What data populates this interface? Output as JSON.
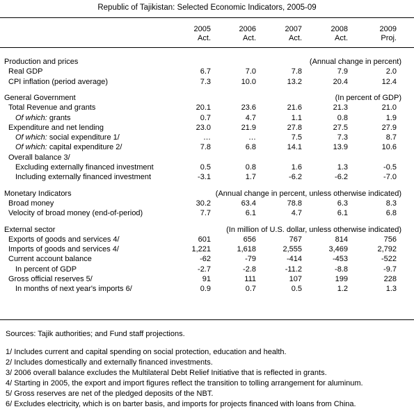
{
  "title": "Republic of Tajikistan: Selected Economic Indicators, 2005-09",
  "columns": [
    {
      "year": "2005",
      "type": "Act."
    },
    {
      "year": "2006",
      "type": "Act."
    },
    {
      "year": "2007",
      "type": "Act."
    },
    {
      "year": "2008",
      "type": "Act."
    },
    {
      "year": "2009",
      "type": "Proj."
    }
  ],
  "rows": [
    {
      "kind": "section",
      "label": "Production and prices",
      "unit": "(Annual change in percent)"
    },
    {
      "kind": "data",
      "indent": 1,
      "label": "Real GDP",
      "values": [
        "6.7",
        "7.0",
        "7.8",
        "7.9",
        "2.0"
      ]
    },
    {
      "kind": "data",
      "indent": 1,
      "label": "CPI inflation (period average)",
      "values": [
        "7.3",
        "10.0",
        "13.2",
        "20.4",
        "12.4"
      ]
    },
    {
      "kind": "section",
      "label": "General Government",
      "unit": "(In percent of GDP)",
      "gap": true
    },
    {
      "kind": "data",
      "indent": 1,
      "label": "Total Revenue and grants",
      "values": [
        "20.1",
        "23.6",
        "21.6",
        "21.3",
        "21.0"
      ]
    },
    {
      "kind": "data",
      "indent": 2,
      "italic": "Of which:",
      "label": " grants",
      "values": [
        "0.7",
        "4.7",
        "1.1",
        "0.8",
        "1.9"
      ]
    },
    {
      "kind": "data",
      "indent": 1,
      "label": "Expenditure and net lending",
      "values": [
        "23.0",
        "21.9",
        "27.8",
        "27.5",
        "27.9"
      ]
    },
    {
      "kind": "data",
      "indent": 2,
      "italic": "Of which:",
      "label": " social expenditure 1/",
      "values": [
        "…",
        "…",
        "7.5",
        "7.3",
        "8.7"
      ]
    },
    {
      "kind": "data",
      "indent": 2,
      "italic": "Of which:",
      "label": " capital expenditure 2/",
      "values": [
        "7.8",
        "6.8",
        "14.1",
        "13.9",
        "10.6"
      ]
    },
    {
      "kind": "data",
      "indent": 1,
      "label": "Overall balance 3/",
      "values": []
    },
    {
      "kind": "data",
      "indent": 2,
      "label": "Excluding externally financed investment",
      "values": [
        "0.5",
        "0.8",
        "1.6",
        "1.3",
        "-0.5"
      ]
    },
    {
      "kind": "data",
      "indent": 2,
      "label": "Including externally financed investment",
      "values": [
        "-3.1",
        "1.7",
        "-6.2",
        "-6.2",
        "-7.0"
      ]
    },
    {
      "kind": "section",
      "label": "Monetary Indicators",
      "unit": "(Annual change in percent, unless otherwise indicated)",
      "gap": true
    },
    {
      "kind": "data",
      "indent": 1,
      "label": "Broad money",
      "values": [
        "30.2",
        "63.4",
        "78.8",
        "6.3",
        "8.3"
      ]
    },
    {
      "kind": "data",
      "indent": 1,
      "label": "Velocity of broad money (end-of-period)",
      "values": [
        "7.7",
        "6.1",
        "4.7",
        "6.1",
        "6.8"
      ]
    },
    {
      "kind": "section",
      "label": "External sector",
      "unit": "(In million of U.S. dollar, unless otherwise indicated)",
      "gap": true
    },
    {
      "kind": "data",
      "indent": 1,
      "label": "Exports of goods and services 4/",
      "values": [
        "601",
        "656",
        "767",
        "814",
        "756"
      ]
    },
    {
      "kind": "data",
      "indent": 1,
      "label": "Imports of goods and services 4/",
      "values": [
        "1,221",
        "1,618",
        "2,555",
        "3,469",
        "2,792"
      ]
    },
    {
      "kind": "data",
      "indent": 1,
      "label": "Current account balance",
      "values": [
        "-62",
        "-79",
        "-414",
        "-453",
        "-522"
      ]
    },
    {
      "kind": "data",
      "indent": 2,
      "label": "In percent of GDP",
      "values": [
        "-2.7",
        "-2.8",
        "-11.2",
        "-8.8",
        "-9.7"
      ]
    },
    {
      "kind": "data",
      "indent": 1,
      "label": "Gross official reserves 5/",
      "values": [
        "91",
        "111",
        "107",
        "199",
        "228"
      ]
    },
    {
      "kind": "data",
      "indent": 2,
      "label": "In months of next year's imports 6/",
      "values": [
        "0.9",
        "0.7",
        "0.5",
        "1.2",
        "1.3"
      ]
    }
  ],
  "sources": "Sources: Tajik authorities; and Fund staff projections.",
  "footnotes": [
    "1/ Includes current and capital spending on social protection, education and health.",
    "2/ Includes domestically and externally financed investments.",
    "3/ 2006 overall balance excludes the Multilateral Debt Relief Initiative that is reflected in grants.",
    "4/ Starting in 2005, the export and import figures reflect the transition to tolling arrangement for aluminum.",
    "5/ Gross reserves are net of the pledged deposits of the NBT.",
    "6/ Excludes electricity, which is on barter basis, and imports for projects financed with loans from China."
  ]
}
